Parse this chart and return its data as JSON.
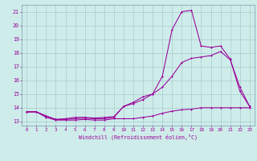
{
  "xlabel": "Windchill (Refroidissement éolien,°C)",
  "bg_color": "#ceecea",
  "grid_color": "#aacccc",
  "line_color": "#990099",
  "spine_color": "#7799aa",
  "xlim": [
    -0.5,
    23.5
  ],
  "ylim": [
    12.7,
    21.5
  ],
  "xticks": [
    0,
    1,
    2,
    3,
    4,
    5,
    6,
    7,
    8,
    9,
    10,
    11,
    12,
    13,
    14,
    15,
    16,
    17,
    18,
    19,
    20,
    21,
    22,
    23
  ],
  "yticks": [
    13,
    14,
    15,
    16,
    17,
    18,
    19,
    20,
    21
  ],
  "curve1_x": [
    0,
    1,
    2,
    3,
    4,
    5,
    6,
    7,
    8,
    9,
    10,
    11,
    12,
    13,
    14,
    15,
    16,
    17,
    18,
    19,
    20,
    21,
    22,
    23
  ],
  "curve1_y": [
    13.7,
    13.7,
    13.3,
    13.1,
    13.1,
    13.1,
    13.15,
    13.1,
    13.1,
    13.2,
    13.2,
    13.2,
    13.3,
    13.4,
    13.6,
    13.75,
    13.85,
    13.9,
    14.0,
    14.0,
    14.0,
    14.0,
    14.0,
    14.0
  ],
  "curve2_x": [
    0,
    1,
    2,
    3,
    4,
    5,
    6,
    7,
    8,
    9,
    10,
    11,
    12,
    13,
    14,
    15,
    16,
    17,
    18,
    19,
    20,
    21,
    22,
    23
  ],
  "curve2_y": [
    13.7,
    13.7,
    13.4,
    13.15,
    13.15,
    13.2,
    13.25,
    13.2,
    13.2,
    13.3,
    14.1,
    14.4,
    14.8,
    15.0,
    16.3,
    19.7,
    21.0,
    21.1,
    18.5,
    18.4,
    18.5,
    17.55,
    15.2,
    14.1
  ],
  "curve3_x": [
    0,
    1,
    2,
    3,
    4,
    5,
    6,
    7,
    8,
    9,
    10,
    11,
    12,
    13,
    14,
    15,
    16,
    17,
    18,
    19,
    20,
    21,
    22,
    23
  ],
  "curve3_y": [
    13.7,
    13.7,
    13.4,
    13.15,
    13.2,
    13.3,
    13.3,
    13.25,
    13.3,
    13.35,
    14.1,
    14.3,
    14.6,
    15.0,
    15.5,
    16.3,
    17.3,
    17.6,
    17.7,
    17.8,
    18.1,
    17.5,
    15.5,
    14.1
  ]
}
